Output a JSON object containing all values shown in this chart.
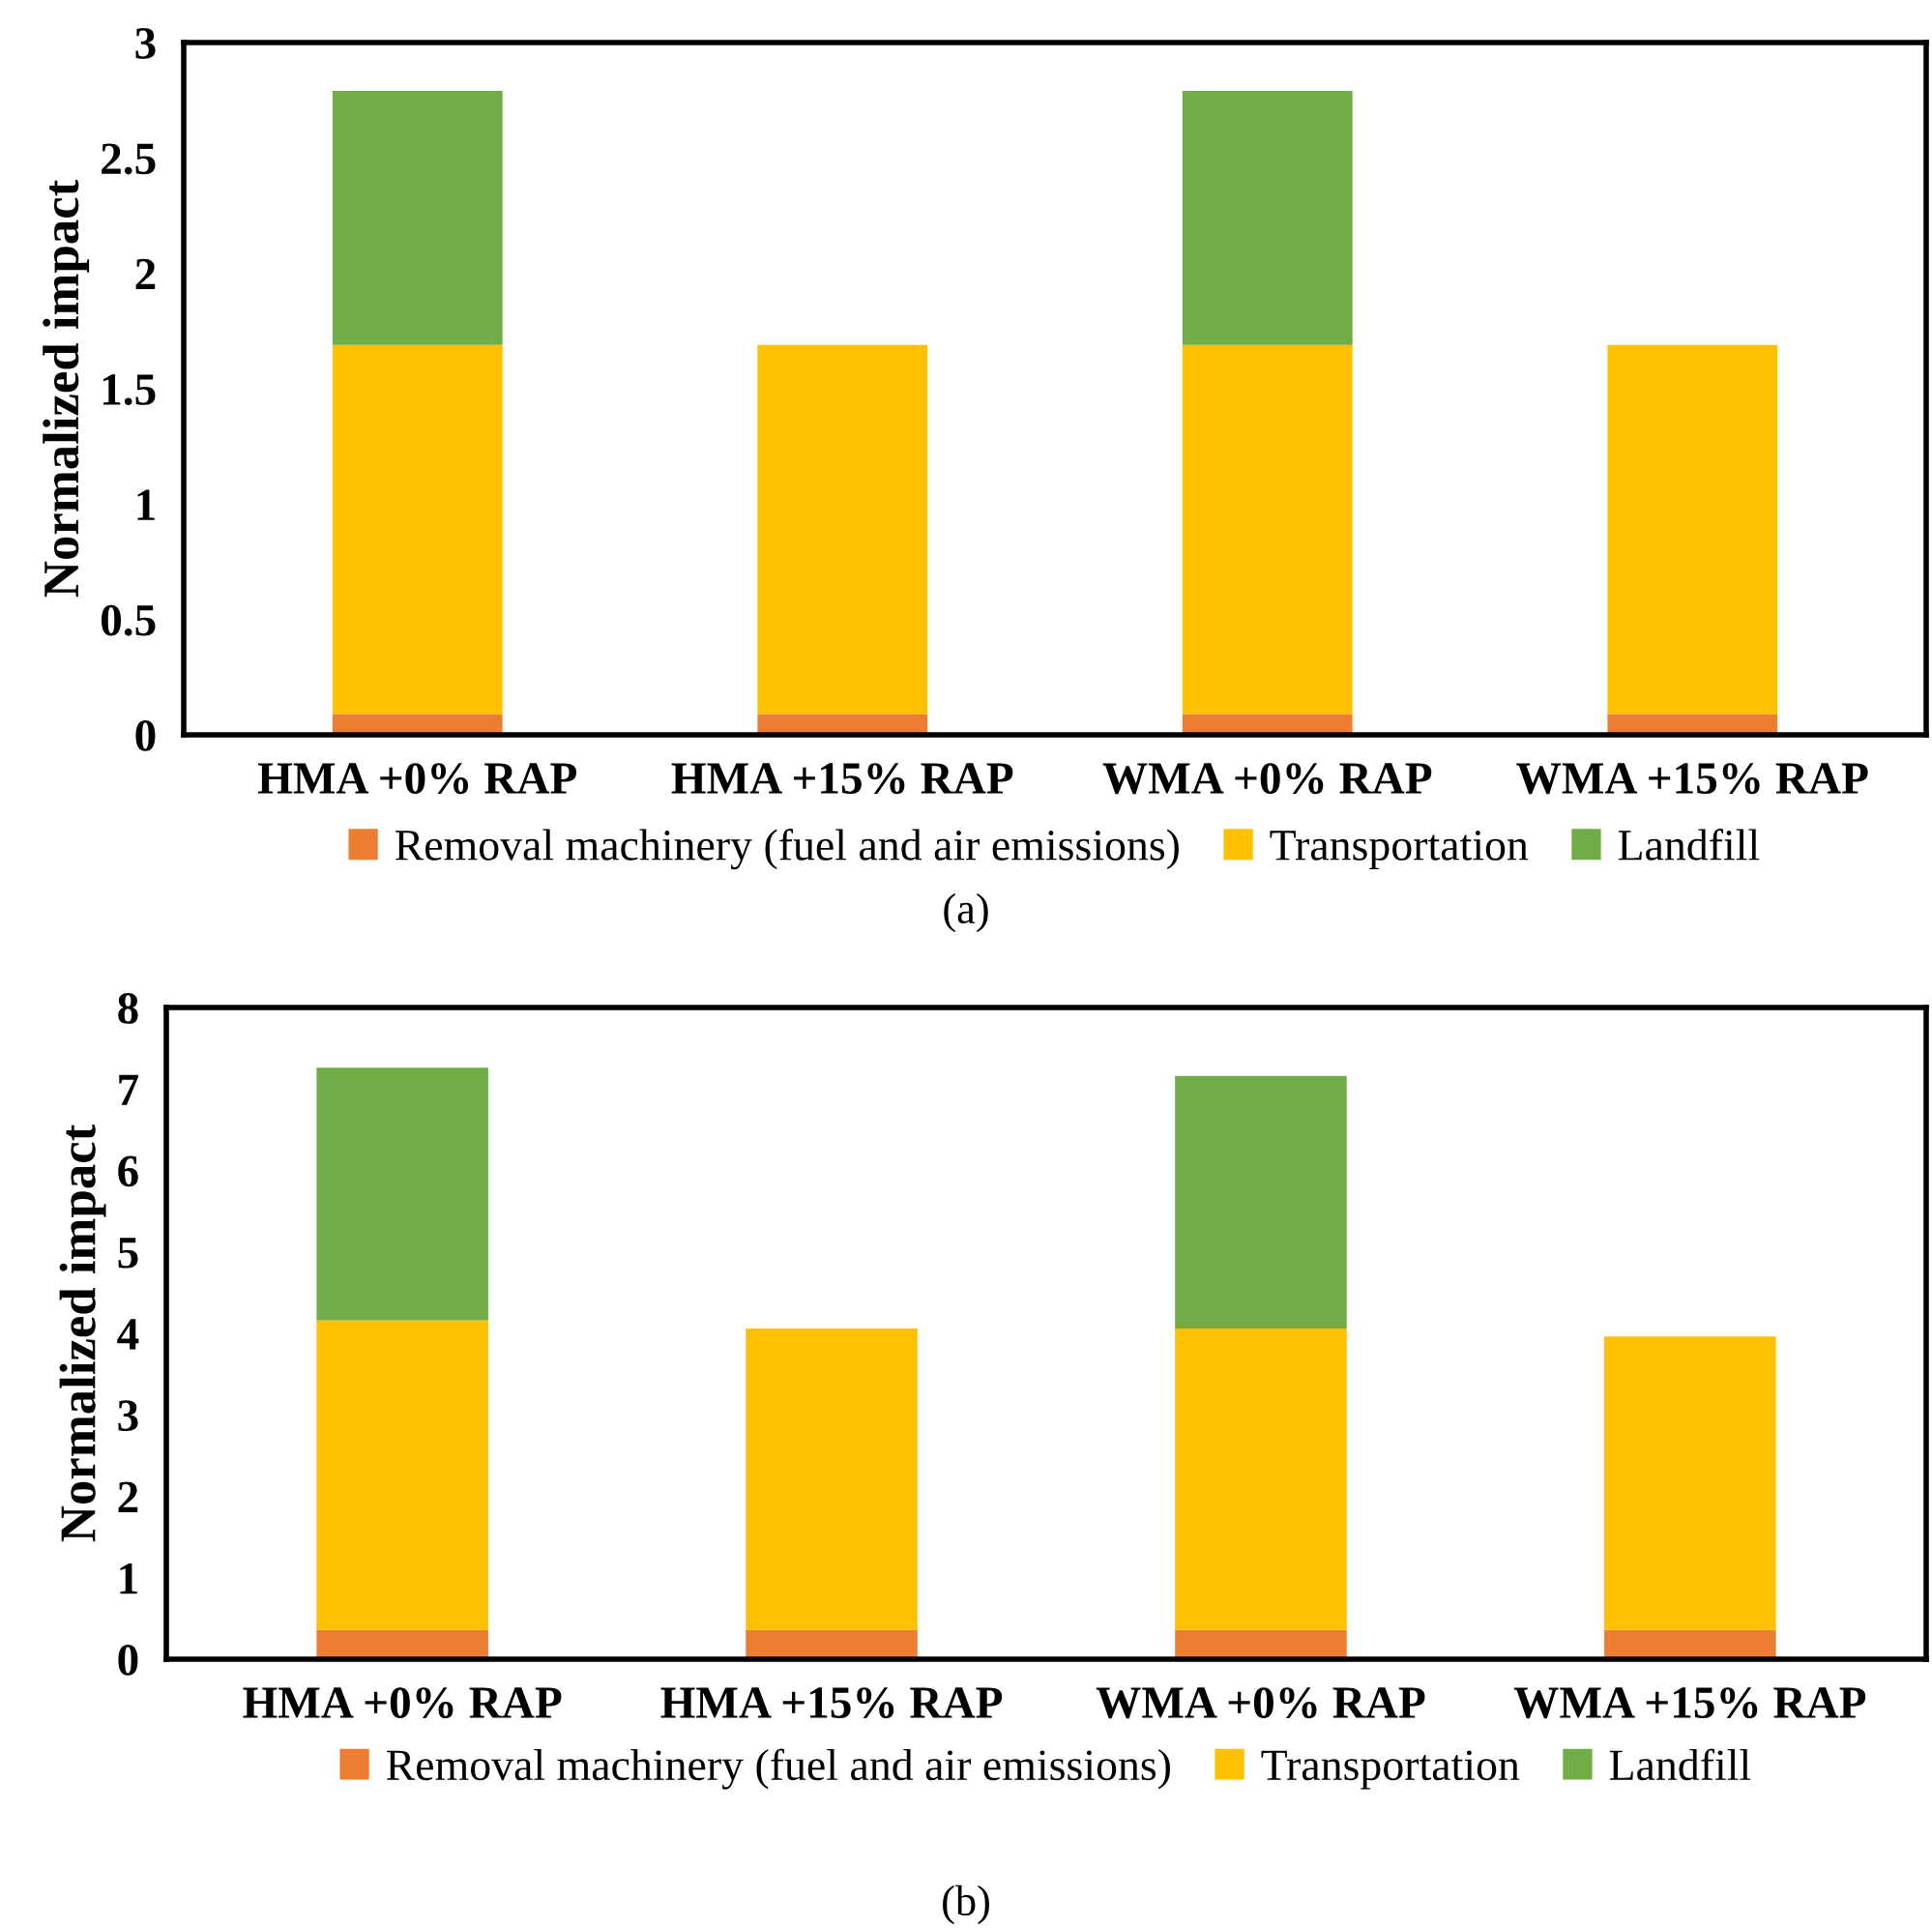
{
  "chart_data": [
    {
      "type": "bar",
      "stacked": true,
      "ylabel": "Normalized impact",
      "categories": [
        "HMA +0% RAP",
        "HMA +15% RAP",
        "WMA +0% RAP",
        "WMA +15% RAP"
      ],
      "series": [
        {
          "name": "Removal machinery (fuel and air emissions)",
          "color": "#ed7d31",
          "values": [
            0.09,
            0.09,
            0.09,
            0.09
          ]
        },
        {
          "name": "Transportation",
          "color": "#ffc000",
          "values": [
            1.6,
            1.6,
            1.6,
            1.6
          ]
        },
        {
          "name": "Landfill",
          "color": "#70ad47",
          "values": [
            1.1,
            0,
            1.1,
            0
          ]
        }
      ],
      "ylim": [
        0,
        3
      ],
      "yticks": [
        0,
        0.5,
        1,
        1.5,
        2,
        2.5,
        3
      ],
      "grid": false,
      "legend": "bottom",
      "annotations": [
        "(a)"
      ]
    },
    {
      "type": "bar",
      "stacked": true,
      "ylabel": "Normalized impact",
      "categories": [
        "HMA +0% RAP",
        "HMA +15% RAP",
        "WMA +0% RAP",
        "WMA +15% RAP"
      ],
      "series": [
        {
          "name": "Removal machinery (fuel and air emissions)",
          "color": "#ed7d31",
          "values": [
            0.36,
            0.36,
            0.36,
            0.36
          ]
        },
        {
          "name": "Transportation",
          "color": "#ffc000",
          "values": [
            3.8,
            3.7,
            3.7,
            3.6
          ]
        },
        {
          "name": "Landfill",
          "color": "#70ad47",
          "values": [
            3.1,
            0,
            3.1,
            0
          ]
        }
      ],
      "ylim": [
        0,
        8
      ],
      "yticks": [
        0,
        1,
        2,
        3,
        4,
        5,
        6,
        7,
        8
      ],
      "grid": false,
      "legend": "bottom",
      "annotations": [
        "(b)"
      ]
    }
  ]
}
